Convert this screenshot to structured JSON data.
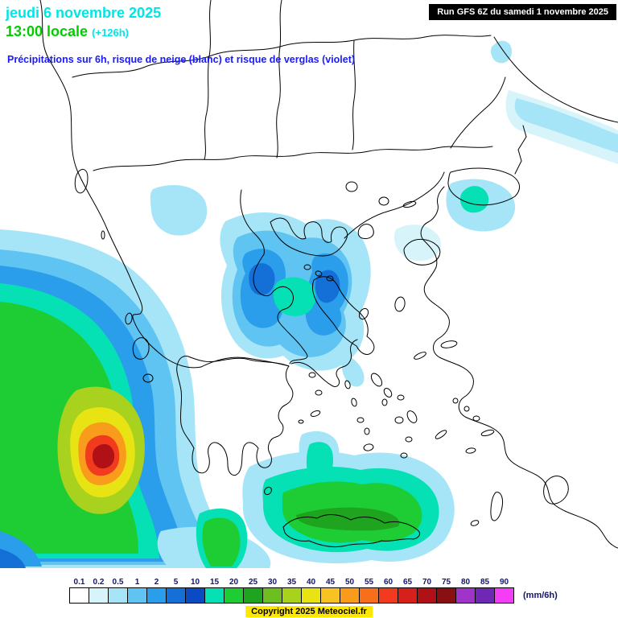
{
  "header": {
    "date_line": "jeudi 6 novembre 2025",
    "time_line": "13:00 locale",
    "time_offset": "(+126h)",
    "subtitle": "Précipitations sur 6h, risque de neige (blanc) et risque de verglas (violet)",
    "run_info": "Run GFS 6Z du samedi 1 novembre 2025"
  },
  "legend": {
    "unit": "(mm/6h)",
    "steps": [
      {
        "label": "0.1",
        "color": "#FFFFFF"
      },
      {
        "label": "0.2",
        "color": "#D8F4FB"
      },
      {
        "label": "0.5",
        "color": "#A6E5F7"
      },
      {
        "label": "1",
        "color": "#5FC4F1"
      },
      {
        "label": "2",
        "color": "#2A9DEB"
      },
      {
        "label": "5",
        "color": "#146FD7"
      },
      {
        "label": "10",
        "color": "#0A4AC3"
      },
      {
        "label": "15",
        "color": "#05E1B4"
      },
      {
        "label": "20",
        "color": "#1ECD33"
      },
      {
        "label": "25",
        "color": "#1FA41F"
      },
      {
        "label": "30",
        "color": "#6EBE21"
      },
      {
        "label": "35",
        "color": "#A8D21E"
      },
      {
        "label": "40",
        "color": "#E8E414"
      },
      {
        "label": "45",
        "color": "#F8C322"
      },
      {
        "label": "50",
        "color": "#F99C1B"
      },
      {
        "label": "55",
        "color": "#F76E1B"
      },
      {
        "label": "60",
        "color": "#F13A1E"
      },
      {
        "label": "65",
        "color": "#D6201C"
      },
      {
        "label": "70",
        "color": "#B01117"
      },
      {
        "label": "75",
        "color": "#8A0F12"
      },
      {
        "label": "80",
        "color": "#A033C8"
      },
      {
        "label": "85",
        "color": "#6E28B4"
      },
      {
        "label": "90",
        "color": "#F53DF5"
      }
    ]
  },
  "footer": {
    "copyright": "Copyright 2025 Meteociel.fr"
  },
  "colors": {
    "date_text": "#00E6E6",
    "time_text": "#00CE00",
    "offset_text": "#00E6E6",
    "subtitle_text": "#1A1AFF",
    "legend_label_text": "#14146E",
    "copyright_bg": "#FFE800",
    "run_box_bg": "#000000",
    "run_box_text": "#FFFFFF"
  }
}
